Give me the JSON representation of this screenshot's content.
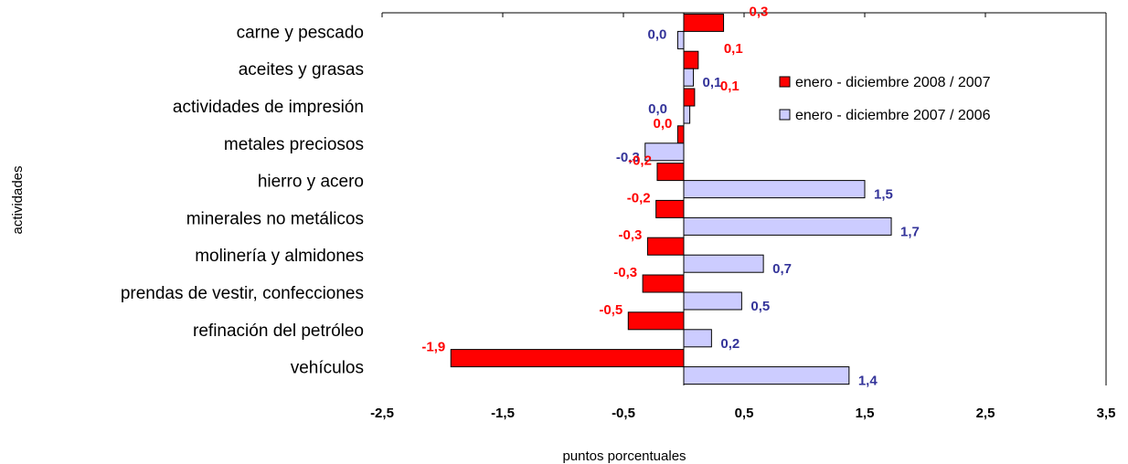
{
  "chart_data": {
    "type": "bar",
    "orientation": "horizontal",
    "title": "",
    "xlabel": "puntos porcentuales",
    "ylabel": "actividades",
    "xlim": [
      -2.5,
      3.5
    ],
    "xticks": [
      "-2,5",
      "-1,5",
      "-0,5",
      "0,5",
      "1,5",
      "2,5",
      "3,5"
    ],
    "xtick_values": [
      -2.5,
      -1.5,
      -0.5,
      0.5,
      1.5,
      2.5,
      3.5
    ],
    "grid": false,
    "legend_position": "right",
    "categories": [
      "carne y pescado",
      "aceites y grasas",
      "actividades de  impresión",
      "metales preciosos",
      "hierro y acero",
      "minerales no metálicos",
      "molinería y almidones",
      "prendas de vestir, confecciones",
      "refinación del petróleo",
      "vehículos"
    ],
    "series": [
      {
        "name": "enero - diciembre  2008 / 2007",
        "color": "#ff0000",
        "label_color": "#ff0000",
        "values": [
          0.33,
          0.12,
          0.09,
          -0.05,
          -0.22,
          -0.23,
          -0.3,
          -0.34,
          -0.46,
          -1.93
        ],
        "labels": [
          "0,3",
          "0,1",
          "0,1",
          "0,0",
          "-0,2",
          "-0,2",
          "-0,3",
          "-0,3",
          "-0,5",
          "-1,9"
        ]
      },
      {
        "name": "enero - diciembre 2007 / 2006",
        "color": "#ccccff",
        "label_color": "#333399",
        "values": [
          -0.05,
          0.08,
          0.05,
          -0.32,
          1.5,
          1.72,
          0.66,
          0.48,
          0.23,
          1.37
        ],
        "labels": [
          "0,0",
          "0,1",
          "0,0",
          "-0,3",
          "1,5",
          "1,7",
          "0,7",
          "0,5",
          "0,2",
          "1,4"
        ]
      }
    ]
  }
}
